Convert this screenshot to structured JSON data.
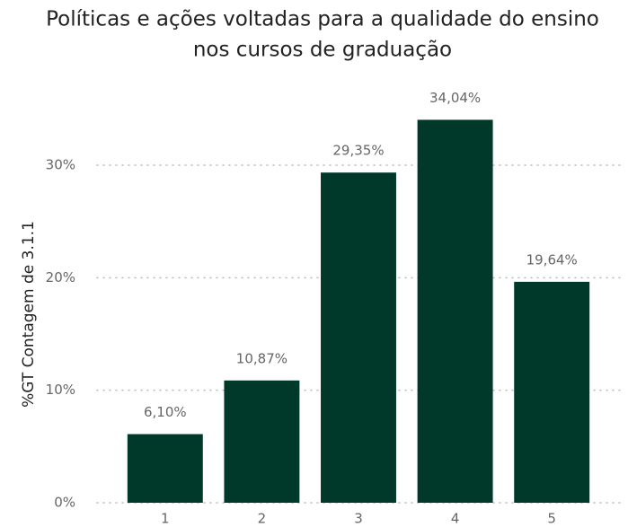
{
  "chart_data": {
    "type": "bar",
    "title": [
      "Políticas e ações voltadas para a qualidade do ensino",
      "nos cursos de graduação"
    ],
    "y_label": "%GT Contagem de 3.1.1",
    "categories": [
      "1",
      "2",
      "3",
      "4",
      "5"
    ],
    "values": [
      6.1,
      10.87,
      29.35,
      34.04,
      19.64
    ],
    "value_labels": [
      "6,10%",
      "10,87%",
      "29,35%",
      "34,04%",
      "19,64%"
    ],
    "color": "#00382a",
    "ylim": [
      0,
      35
    ],
    "yticks": [
      {
        "value": 0,
        "label": "0%"
      },
      {
        "value": 10,
        "label": "10%"
      },
      {
        "value": 20,
        "label": "20%"
      },
      {
        "value": 30,
        "label": "30%"
      }
    ],
    "grid": true
  }
}
